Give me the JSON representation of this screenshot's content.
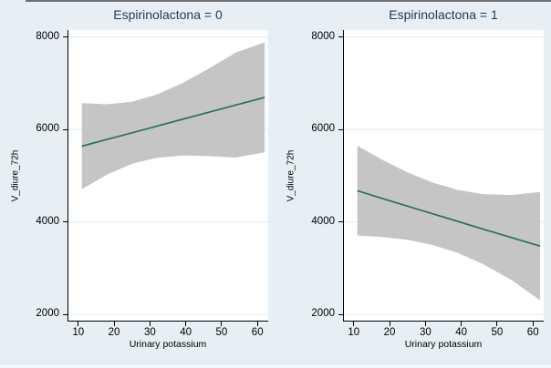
{
  "style": {
    "canvas_bg": "#e7eef4",
    "plot_bg": "#ffffff",
    "band_color": "#c5c5c5",
    "line_color": "#2f6e5e",
    "grid_color": "#e9f0f5",
    "axis_color": "#000000",
    "title_color": "#1e3a5c"
  },
  "chart_data": [
    {
      "type": "line",
      "subtype": "linear-fit-with-ci-band",
      "title": "Espirinolactona = 0",
      "xlabel": "Urinary potassium",
      "ylabel": "V_diure_72h",
      "xlim": [
        7,
        63
      ],
      "ylim": [
        1850,
        8150
      ],
      "xticks": [
        10,
        20,
        30,
        40,
        50,
        60
      ],
      "yticks": [
        2000,
        4000,
        6000,
        8000
      ],
      "grid": "horizontal-only",
      "legend": "none",
      "x": [
        11,
        18,
        25,
        32,
        39,
        46,
        54,
        62
      ],
      "fit": [
        5640,
        5785,
        5930,
        6075,
        6220,
        6365,
        6530,
        6695
      ],
      "ci_upper": [
        6570,
        6545,
        6600,
        6760,
        7000,
        7300,
        7665,
        7885
      ],
      "ci_lower": [
        4710,
        5025,
        5260,
        5390,
        5440,
        5430,
        5395,
        5505
      ]
    },
    {
      "type": "line",
      "subtype": "linear-fit-with-ci-band",
      "title": "Espirinolactona = 1",
      "xlabel": "Urinary potassium",
      "ylabel": "V_diure_72h",
      "xlim": [
        7,
        63
      ],
      "ylim": [
        1850,
        8150
      ],
      "xticks": [
        10,
        20,
        30,
        40,
        50,
        60
      ],
      "yticks": [
        2000,
        4000,
        6000,
        8000
      ],
      "grid": "horizontal-only",
      "legend": "none",
      "x": [
        11,
        18,
        25,
        32,
        39,
        46,
        54,
        62
      ],
      "fit": [
        4680,
        4510,
        4345,
        4180,
        4015,
        3850,
        3665,
        3480
      ],
      "ci_upper": [
        5650,
        5345,
        5075,
        4855,
        4695,
        4605,
        4585,
        4650
      ],
      "ci_lower": [
        3710,
        3675,
        3615,
        3505,
        3335,
        3095,
        2745,
        2310
      ]
    }
  ]
}
